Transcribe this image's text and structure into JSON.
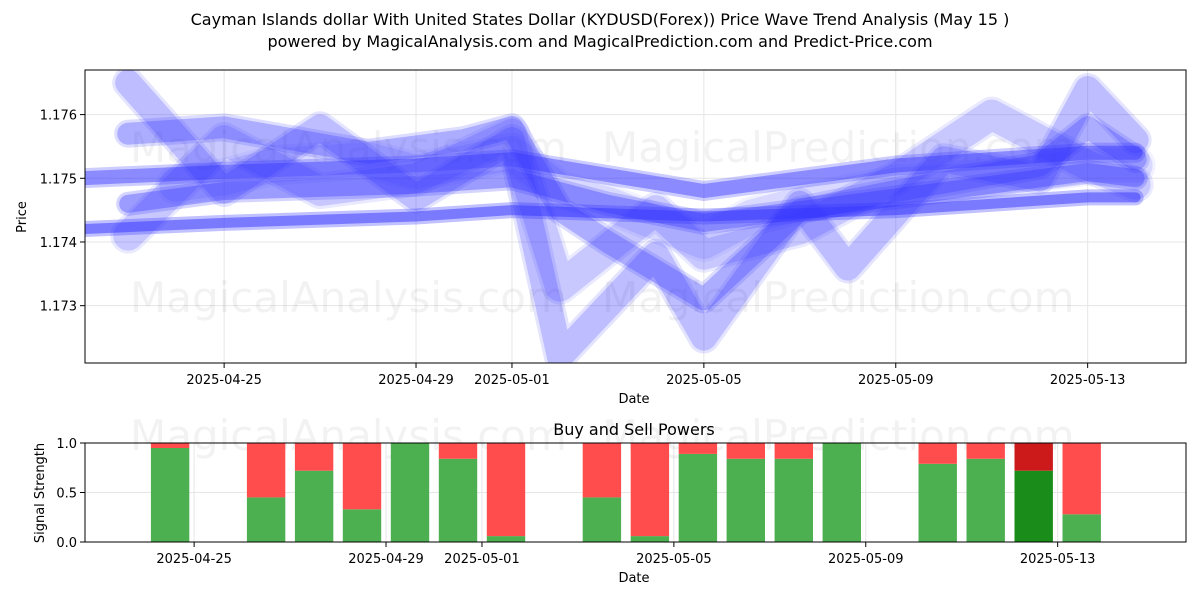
{
  "title_line1": "Cayman Islands dollar With United States Dollar (KYDUSD(Forex)) Price Wave Trend Analysis (May 15 )",
  "title_line2": "powered by MagicalAnalysis.com and MagicalPrediction.com and Predict-Price.com",
  "watermarks": [
    "MagicalAnalysis.com",
    "MagicalPrediction.com"
  ],
  "colors": {
    "wave": "#3333ff",
    "buy": "#4caf50",
    "sell": "#ff4c4c",
    "buy_strong": "#1a8c1a",
    "sell_strong": "#cc1a1a"
  },
  "chart_data": [
    {
      "type": "line",
      "title": "",
      "xlabel": "Date",
      "ylabel": "Price",
      "x_ticks": [
        "2025-04-25",
        "2025-04-29",
        "2025-05-01",
        "2025-05-05",
        "2025-05-09",
        "2025-05-13"
      ],
      "y_ticks": [
        "1.173",
        "1.174",
        "1.175",
        "1.176"
      ],
      "ylim": [
        1.1721,
        1.1767
      ],
      "xlim": [
        "2025-04-22",
        "2025-05-15"
      ],
      "grid": true,
      "series": [
        {
          "x": [
            "2025-04-24",
            "2025-04-25",
            "2025-04-26",
            "2025-04-28",
            "2025-04-29",
            "2025-05-01",
            "2025-05-02",
            "2025-05-03",
            "2025-05-05",
            "2025-05-06",
            "2025-05-07",
            "2025-05-09",
            "2025-05-11",
            "2025-05-13",
            "2025-05-14"
          ],
          "values": [
            1.1749,
            1.175,
            1.1752,
            1.1753,
            1.1751,
            1.1754,
            1.1748,
            1.1746,
            1.174,
            1.1744,
            1.1746,
            1.1749,
            1.175,
            1.1752,
            1.1752
          ]
        },
        {
          "x": [
            "2025-04-23",
            "2025-04-25",
            "2025-04-27",
            "2025-04-29",
            "2025-05-01",
            "2025-05-02",
            "2025-05-04",
            "2025-05-05",
            "2025-05-07",
            "2025-05-09",
            "2025-05-11",
            "2025-05-13",
            "2025-05-14"
          ],
          "values": [
            1.1741,
            1.1756,
            1.1748,
            1.175,
            1.1757,
            1.1733,
            1.1745,
            1.1738,
            1.1742,
            1.175,
            1.176,
            1.1752,
            1.1749
          ]
        },
        {
          "x": [
            "2025-04-23",
            "2025-04-25",
            "2025-04-27",
            "2025-04-29",
            "2025-05-01",
            "2025-05-02",
            "2025-05-04",
            "2025-05-05",
            "2025-05-07",
            "2025-05-08",
            "2025-05-10",
            "2025-05-12",
            "2025-05-13",
            "2025-05-14"
          ],
          "values": [
            1.1765,
            1.1748,
            1.1758,
            1.1747,
            1.1756,
            1.1722,
            1.1738,
            1.1725,
            1.1746,
            1.1736,
            1.1753,
            1.175,
            1.1764,
            1.1756
          ]
        },
        {
          "x": [
            "2025-04-23",
            "2025-04-25",
            "2025-04-28",
            "2025-04-30",
            "2025-05-01",
            "2025-05-02",
            "2025-05-03",
            "2025-05-05",
            "2025-05-07",
            "2025-05-09",
            "2025-05-12",
            "2025-05-13",
            "2025-05-14"
          ],
          "values": [
            1.1757,
            1.1758,
            1.1754,
            1.1756,
            1.1758,
            1.1745,
            1.174,
            1.1731,
            1.1745,
            1.1748,
            1.1752,
            1.1758,
            1.1753
          ]
        },
        {
          "x": [
            "2025-04-23",
            "2025-04-25",
            "2025-04-29",
            "2025-05-01",
            "2025-05-03",
            "2025-05-05",
            "2025-05-09",
            "2025-05-13",
            "2025-05-14"
          ],
          "values": [
            1.1746,
            1.1748,
            1.1749,
            1.175,
            1.1746,
            1.1743,
            1.1747,
            1.1751,
            1.175
          ]
        },
        {
          "x": [
            "2025-04-22",
            "2025-04-25",
            "2025-04-29",
            "2025-05-01",
            "2025-05-05",
            "2025-05-09",
            "2025-05-13",
            "2025-05-14"
          ],
          "values": [
            1.175,
            1.1751,
            1.1752,
            1.1753,
            1.1748,
            1.1752,
            1.1754,
            1.1754
          ]
        },
        {
          "x": [
            "2025-04-22",
            "2025-04-25",
            "2025-04-29",
            "2025-05-01",
            "2025-05-05",
            "2025-05-09",
            "2025-05-13",
            "2025-05-14"
          ],
          "values": [
            1.1742,
            1.1743,
            1.1744,
            1.1745,
            1.1744,
            1.1745,
            1.1747,
            1.1747
          ]
        }
      ]
    },
    {
      "type": "bar",
      "title": "Buy and Sell Powers",
      "xlabel": "Date",
      "ylabel": "Signal Strength",
      "x_ticks": [
        "2025-04-25",
        "2025-04-29",
        "2025-05-01",
        "2025-05-05",
        "2025-05-09",
        "2025-05-13"
      ],
      "y_ticks": [
        "0.0",
        "0.5",
        "1.0"
      ],
      "ylim": [
        0,
        1
      ],
      "xlim": [
        "2025-04-22",
        "2025-05-15"
      ],
      "categories": [
        "2025-04-24",
        "2025-04-26",
        "2025-04-27",
        "2025-04-28",
        "2025-04-29",
        "2025-04-30",
        "2025-05-01",
        "2025-05-03",
        "2025-05-04",
        "2025-05-05",
        "2025-05-06",
        "2025-05-07",
        "2025-05-08",
        "2025-05-10",
        "2025-05-11",
        "2025-05-12",
        "2025-05-13"
      ],
      "series": [
        {
          "values": [
            0.95,
            0.45,
            0.72,
            0.33,
            1.0,
            0.84,
            0.06,
            0.45,
            0.06,
            0.89,
            0.84,
            0.84,
            1.0,
            0.79,
            0.84,
            0.72,
            0.28
          ]
        },
        {
          "values": [
            0.05,
            0.55,
            0.28,
            0.67,
            0.0,
            0.16,
            0.94,
            0.55,
            0.94,
            0.11,
            0.16,
            0.16,
            0.0,
            0.21,
            0.16,
            0.28,
            0.72
          ]
        }
      ],
      "strong_bar": "2025-05-12"
    }
  ]
}
